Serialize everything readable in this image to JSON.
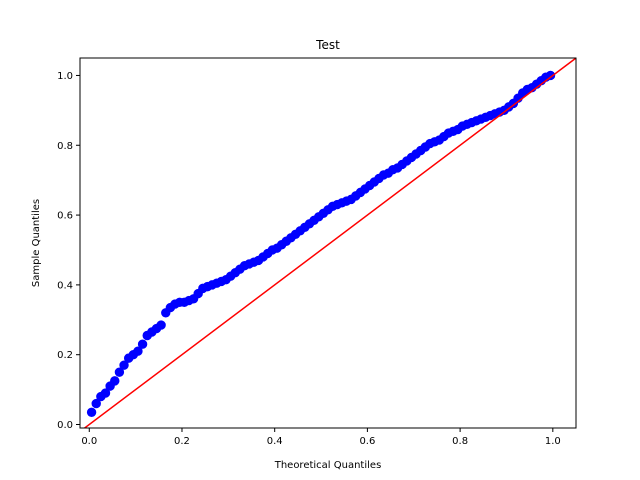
{
  "chart_data": {
    "type": "scatter",
    "title": "Test",
    "xlabel": "Theoretical Quantiles",
    "ylabel": "Sample Quantiles",
    "xlim": [
      -0.02,
      1.05
    ],
    "ylim": [
      -0.01,
      1.05
    ],
    "xticks": [
      0.0,
      0.2,
      0.4,
      0.6,
      0.8,
      1.0
    ],
    "xtick_labels": [
      "0.0",
      "0.2",
      "0.4",
      "0.6",
      "0.8",
      "1.0"
    ],
    "yticks": [
      0.0,
      0.2,
      0.4,
      0.6,
      0.8,
      1.0
    ],
    "ytick_labels": [
      "0.0",
      "0.2",
      "0.4",
      "0.6",
      "0.8",
      "1.0"
    ],
    "grid": false,
    "marker_color": "#0000ff",
    "reference_line": {
      "color": "#ff0000",
      "x": [
        -0.02,
        1.05
      ],
      "y": [
        -0.02,
        1.05
      ]
    },
    "series": [
      {
        "x": [
          0.005,
          0.015,
          0.025,
          0.035,
          0.045,
          0.055,
          0.065,
          0.075,
          0.085,
          0.095,
          0.105,
          0.115,
          0.125,
          0.135,
          0.145,
          0.155,
          0.165,
          0.175,
          0.185,
          0.195,
          0.205,
          0.215,
          0.225,
          0.235,
          0.245,
          0.255,
          0.265,
          0.275,
          0.285,
          0.295,
          0.305,
          0.315,
          0.325,
          0.335,
          0.345,
          0.355,
          0.365,
          0.375,
          0.385,
          0.395,
          0.405,
          0.415,
          0.425,
          0.435,
          0.445,
          0.455,
          0.465,
          0.475,
          0.485,
          0.495,
          0.505,
          0.515,
          0.525,
          0.535,
          0.545,
          0.555,
          0.565,
          0.575,
          0.585,
          0.595,
          0.605,
          0.615,
          0.625,
          0.635,
          0.645,
          0.655,
          0.665,
          0.675,
          0.685,
          0.695,
          0.705,
          0.715,
          0.725,
          0.735,
          0.745,
          0.755,
          0.765,
          0.775,
          0.785,
          0.795,
          0.805,
          0.815,
          0.825,
          0.835,
          0.845,
          0.855,
          0.865,
          0.875,
          0.885,
          0.895,
          0.905,
          0.915,
          0.925,
          0.935,
          0.945,
          0.955,
          0.965,
          0.975,
          0.985,
          0.995
        ],
        "y": [
          0.035,
          0.06,
          0.08,
          0.09,
          0.11,
          0.125,
          0.15,
          0.17,
          0.19,
          0.2,
          0.21,
          0.23,
          0.255,
          0.265,
          0.275,
          0.285,
          0.32,
          0.335,
          0.345,
          0.35,
          0.35,
          0.355,
          0.36,
          0.375,
          0.39,
          0.395,
          0.4,
          0.405,
          0.41,
          0.415,
          0.425,
          0.435,
          0.445,
          0.455,
          0.46,
          0.465,
          0.47,
          0.48,
          0.49,
          0.5,
          0.505,
          0.515,
          0.525,
          0.535,
          0.545,
          0.555,
          0.565,
          0.575,
          0.585,
          0.595,
          0.605,
          0.615,
          0.625,
          0.63,
          0.635,
          0.64,
          0.645,
          0.655,
          0.665,
          0.675,
          0.685,
          0.695,
          0.705,
          0.715,
          0.72,
          0.73,
          0.735,
          0.745,
          0.755,
          0.765,
          0.775,
          0.785,
          0.795,
          0.805,
          0.81,
          0.815,
          0.825,
          0.835,
          0.84,
          0.845,
          0.855,
          0.86,
          0.865,
          0.87,
          0.875,
          0.88,
          0.885,
          0.89,
          0.895,
          0.9,
          0.91,
          0.92,
          0.935,
          0.95,
          0.96,
          0.965,
          0.975,
          0.985,
          0.995,
          1.0
        ]
      }
    ]
  }
}
